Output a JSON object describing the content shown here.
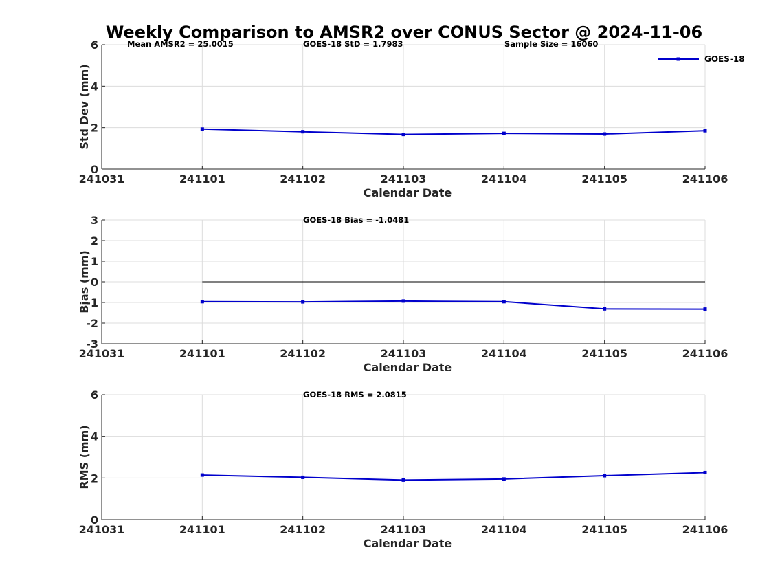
{
  "title": "Weekly Comparison to AMSR2 over CONUS Sector @ 2024-11-06",
  "colors": {
    "series": "#0000cc",
    "zero_line": "#000000",
    "grid": "#dcdcdc",
    "axis": "#262626"
  },
  "legend": {
    "label": "GOES-18",
    "position": "top-right"
  },
  "chart_data": [
    {
      "type": "line",
      "id": "stddev",
      "xlabel": "Calendar Date",
      "ylabel": "Std Dev (mm)",
      "x_ticks": [
        "241031",
        "241101",
        "241102",
        "241103",
        "241104",
        "241105",
        "241106"
      ],
      "ylim": [
        0,
        6
      ],
      "y_ticks": [
        0,
        2,
        4,
        6
      ],
      "annotations": [
        "Mean AMSR2 = 25.0015",
        "GOES-18 StD = 1.7983",
        "Sample Size = 16060"
      ],
      "series": [
        {
          "name": "GOES-18",
          "x": [
            1,
            2,
            3,
            4,
            5,
            6
          ],
          "values": [
            1.93,
            1.8,
            1.67,
            1.72,
            1.69,
            1.85
          ]
        }
      ],
      "zero_line": false
    },
    {
      "type": "line",
      "id": "bias",
      "xlabel": "Calendar Date",
      "ylabel": "Bias (mm)",
      "x_ticks": [
        "241031",
        "241101",
        "241102",
        "241103",
        "241104",
        "241105",
        "241106"
      ],
      "ylim": [
        -3,
        3
      ],
      "y_ticks": [
        -3,
        -2,
        -1,
        0,
        1,
        2,
        3
      ],
      "annotations": [
        "GOES-18 Bias  = -1.0481"
      ],
      "series": [
        {
          "name": "GOES-18",
          "x": [
            1,
            2,
            3,
            4,
            5,
            6
          ],
          "values": [
            -0.96,
            -0.97,
            -0.93,
            -0.96,
            -1.31,
            -1.32
          ]
        }
      ],
      "zero_line": true
    },
    {
      "type": "line",
      "id": "rms",
      "xlabel": "Calendar Date",
      "ylabel": "RMS (mm)",
      "x_ticks": [
        "241031",
        "241101",
        "241102",
        "241103",
        "241104",
        "241105",
        "241106"
      ],
      "ylim": [
        0,
        6
      ],
      "y_ticks": [
        0,
        2,
        4,
        6
      ],
      "annotations": [
        "GOES-18 RMS = 2.0815"
      ],
      "series": [
        {
          "name": "GOES-18",
          "x": [
            1,
            2,
            3,
            4,
            5,
            6
          ],
          "values": [
            2.14,
            2.03,
            1.9,
            1.95,
            2.11,
            2.26
          ]
        }
      ],
      "zero_line": false
    }
  ]
}
